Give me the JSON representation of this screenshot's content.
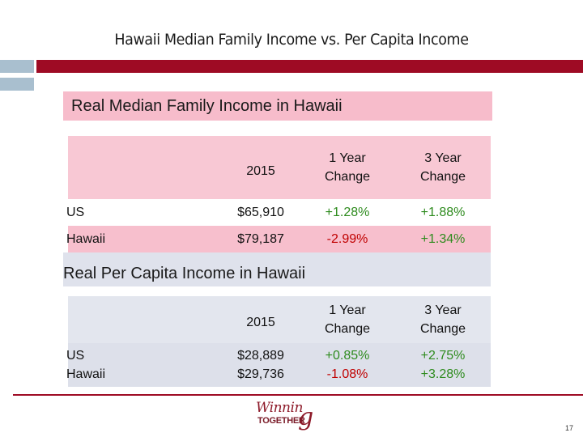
{
  "slide": {
    "title": "Hawaii Median Family Income vs. Per Capita Income",
    "page_number": "17"
  },
  "section1": {
    "title": "Real Median Family Income in Hawaii",
    "headers": {
      "year": "2015",
      "one_year": [
        "1 Year",
        "Change"
      ],
      "three_year": [
        "3 Year",
        "Change"
      ]
    },
    "rows": [
      {
        "label": "US",
        "value_2015": "$65,910",
        "one_year_change": "+1.28%",
        "three_year_change": "+1.88%"
      },
      {
        "label": "Hawaii",
        "value_2015": "$79,187",
        "one_year_change": "-2.99%",
        "three_year_change": "+1.34%"
      }
    ]
  },
  "section2": {
    "title": "Real Per Capita Income in Hawaii",
    "headers": {
      "year": "2015",
      "one_year": [
        "1 Year",
        "Change"
      ],
      "three_year": [
        "3 Year",
        "Change"
      ]
    },
    "rows": [
      {
        "label": "US",
        "value_2015": "$28,889",
        "one_year_change": "+0.85%",
        "three_year_change": "+2.75%"
      },
      {
        "label": "Hawaii",
        "value_2015": "$29,736",
        "one_year_change": "-1.08%",
        "three_year_change": "+3.28%"
      }
    ]
  },
  "logo": {
    "top": "Winnin",
    "g": "g",
    "bottom": "TOGETHER"
  },
  "colors": {
    "accent": "#9e0b24",
    "positive": "#2e8b1e",
    "negative": "#c00000",
    "pink": "#f7bccb",
    "lavender": "#dfe2ec"
  }
}
